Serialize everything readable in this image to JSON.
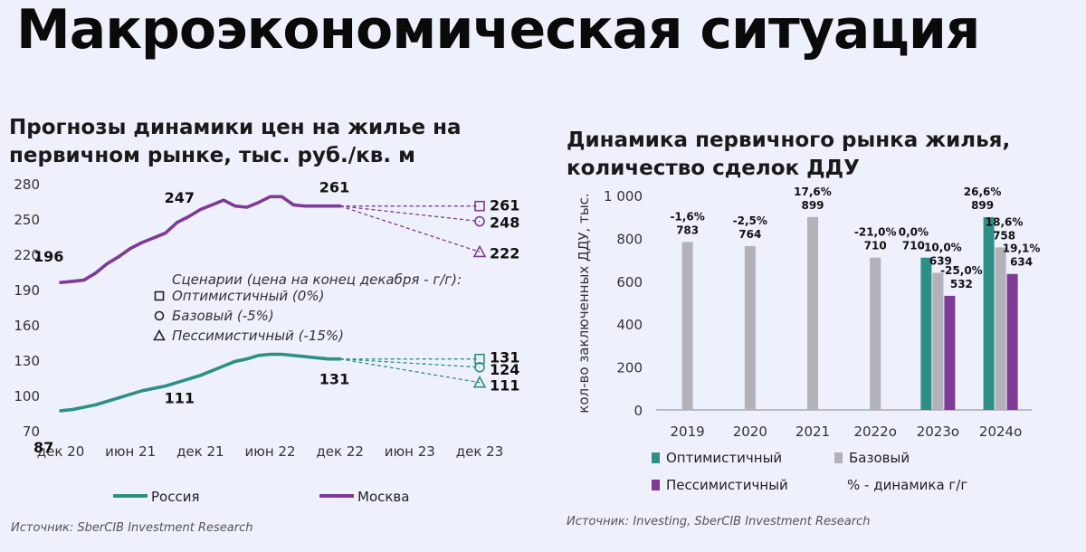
{
  "title": "Макроэкономическая ситуация",
  "left": {
    "title_line1": "Прогнозы динамики цен на жилье на",
    "title_line2": "первичном рынке, тыс. руб./кв. м",
    "source": "Источник: SberCIB Investment Research"
  },
  "right": {
    "title_line1": "Динамика первичного рынка жилья,",
    "title_line2": "количество сделок ДДУ",
    "source": "Источник: Investing, SberCIB Investment Research"
  },
  "chart_data": [
    {
      "type": "line",
      "title": "Прогнозы динамики цен на жилье на первичном рынке, тыс. руб./кв. м",
      "x_ticks": [
        "дек 20",
        "июн 21",
        "дек 21",
        "июн 22",
        "дек 22",
        "июн 23",
        "дек 23"
      ],
      "y_ticks": [
        70,
        100,
        130,
        160,
        190,
        220,
        250,
        280
      ],
      "ylim": [
        70,
        280
      ],
      "x_range_months": [
        0,
        36
      ],
      "series": [
        {
          "name": "Москва",
          "color": "#7e3a96",
          "months": [
            0,
            1,
            2,
            3,
            4,
            5,
            6,
            7,
            8,
            9,
            10,
            11,
            12,
            13,
            14,
            15,
            16,
            17,
            18,
            19,
            20,
            21,
            22,
            23,
            24
          ],
          "values": [
            196,
            197,
            198,
            204,
            212,
            218,
            225,
            230,
            234,
            238,
            247,
            252,
            258,
            262,
            266,
            261,
            260,
            264,
            269,
            269,
            262,
            261,
            261,
            261,
            261
          ]
        },
        {
          "name": "Россия",
          "color": "#2e8f87",
          "months": [
            0,
            1,
            2,
            3,
            4,
            5,
            6,
            7,
            8,
            9,
            10,
            11,
            12,
            13,
            14,
            15,
            16,
            17,
            18,
            19,
            20,
            21,
            22,
            23,
            24
          ],
          "values": [
            87,
            88,
            90,
            92,
            95,
            98,
            101,
            104,
            106,
            108,
            111,
            114,
            117,
            121,
            125,
            129,
            131,
            134,
            135,
            135,
            134,
            133,
            132,
            131,
            131
          ]
        }
      ],
      "forecasts": [
        {
          "series": "Москва",
          "scenario": "Оптимистичный",
          "marker": "square",
          "value": 261
        },
        {
          "series": "Москва",
          "scenario": "Базовый",
          "marker": "circle",
          "value": 248
        },
        {
          "series": "Москва",
          "scenario": "Пессимистичный",
          "marker": "triangle",
          "value": 222
        },
        {
          "series": "Россия",
          "scenario": "Оптимистичный",
          "marker": "square",
          "value": 131
        },
        {
          "series": "Россия",
          "scenario": "Базовый",
          "marker": "circle",
          "value": 124
        },
        {
          "series": "Россия",
          "scenario": "Пессимистичный",
          "marker": "triangle",
          "value": 111
        }
      ],
      "annotations": [
        {
          "month": 0,
          "value": 196,
          "label": "196"
        },
        {
          "month": 10,
          "value": 247,
          "label": "247"
        },
        {
          "month": 23,
          "value": 261,
          "label": "261"
        },
        {
          "month": 0,
          "value": 87,
          "label": "87"
        },
        {
          "month": 10,
          "value": 111,
          "label": "111"
        },
        {
          "month": 23,
          "value": 131,
          "label": "131"
        }
      ],
      "scenario_legend": {
        "title": "Сценарии (цена на конец декабря - г/г):",
        "items": [
          {
            "marker": "square",
            "label": "Оптимистичный (0%)"
          },
          {
            "marker": "circle",
            "label": "Базовый (-5%)"
          },
          {
            "marker": "triangle",
            "label": "Пессимистичный (-15%)"
          }
        ]
      },
      "legend": [
        {
          "label": "Россия",
          "color": "#2e8f87"
        },
        {
          "label": "Москва",
          "color": "#7e3a96"
        }
      ]
    },
    {
      "type": "bar",
      "title": "Динамика первичного рынка жилья, количество сделок ДДУ",
      "ylabel": "кол-во заключенных ДДУ, тыс.",
      "ylim": [
        0,
        1000
      ],
      "y_ticks": [
        0,
        200,
        400,
        600,
        800,
        1000
      ],
      "y_tick_labels": [
        "0",
        "200",
        "400",
        "600",
        "800",
        "1 000"
      ],
      "categories": [
        "2019",
        "2020",
        "2021",
        "2022о",
        "2023о",
        "2024о"
      ],
      "colors": {
        "Оптимистичный": "#2e8f87",
        "Базовый": "#b2b2b8",
        "Пессимистичный": "#7e3a96"
      },
      "bars": [
        {
          "category": "2019",
          "series": "Базовый",
          "value": 783,
          "pct": "-1,6%"
        },
        {
          "category": "2020",
          "series": "Базовый",
          "value": 764,
          "pct": "-2,5%"
        },
        {
          "category": "2021",
          "series": "Базовый",
          "value": 899,
          "pct": "17,6%"
        },
        {
          "category": "2022о",
          "series": "Базовый",
          "value": 710,
          "pct": "-21,0%"
        },
        {
          "category": "2023о",
          "series": "Оптимистичный",
          "value": 710,
          "pct": "0,0%"
        },
        {
          "category": "2023о",
          "series": "Базовый",
          "value": 639,
          "pct": "-10,0%"
        },
        {
          "category": "2023о",
          "series": "Пессимистичный",
          "value": 532,
          "pct": "-25,0%"
        },
        {
          "category": "2024о",
          "series": "Оптимистичный",
          "value": 899,
          "pct": "26,6%"
        },
        {
          "category": "2024о",
          "series": "Базовый",
          "value": 758,
          "pct": "18,6%"
        },
        {
          "category": "2024о",
          "series": "Пессимистичный",
          "value": 634,
          "pct": "19,1%"
        }
      ],
      "legend": [
        {
          "label": "Оптимистичный",
          "color": "#2e8f87"
        },
        {
          "label": "Базовый",
          "color": "#b2b2b8"
        },
        {
          "label": "Пессимистичный",
          "color": "#7e3a96"
        },
        {
          "label": "% - динамика г/г",
          "color": ""
        }
      ]
    }
  ]
}
